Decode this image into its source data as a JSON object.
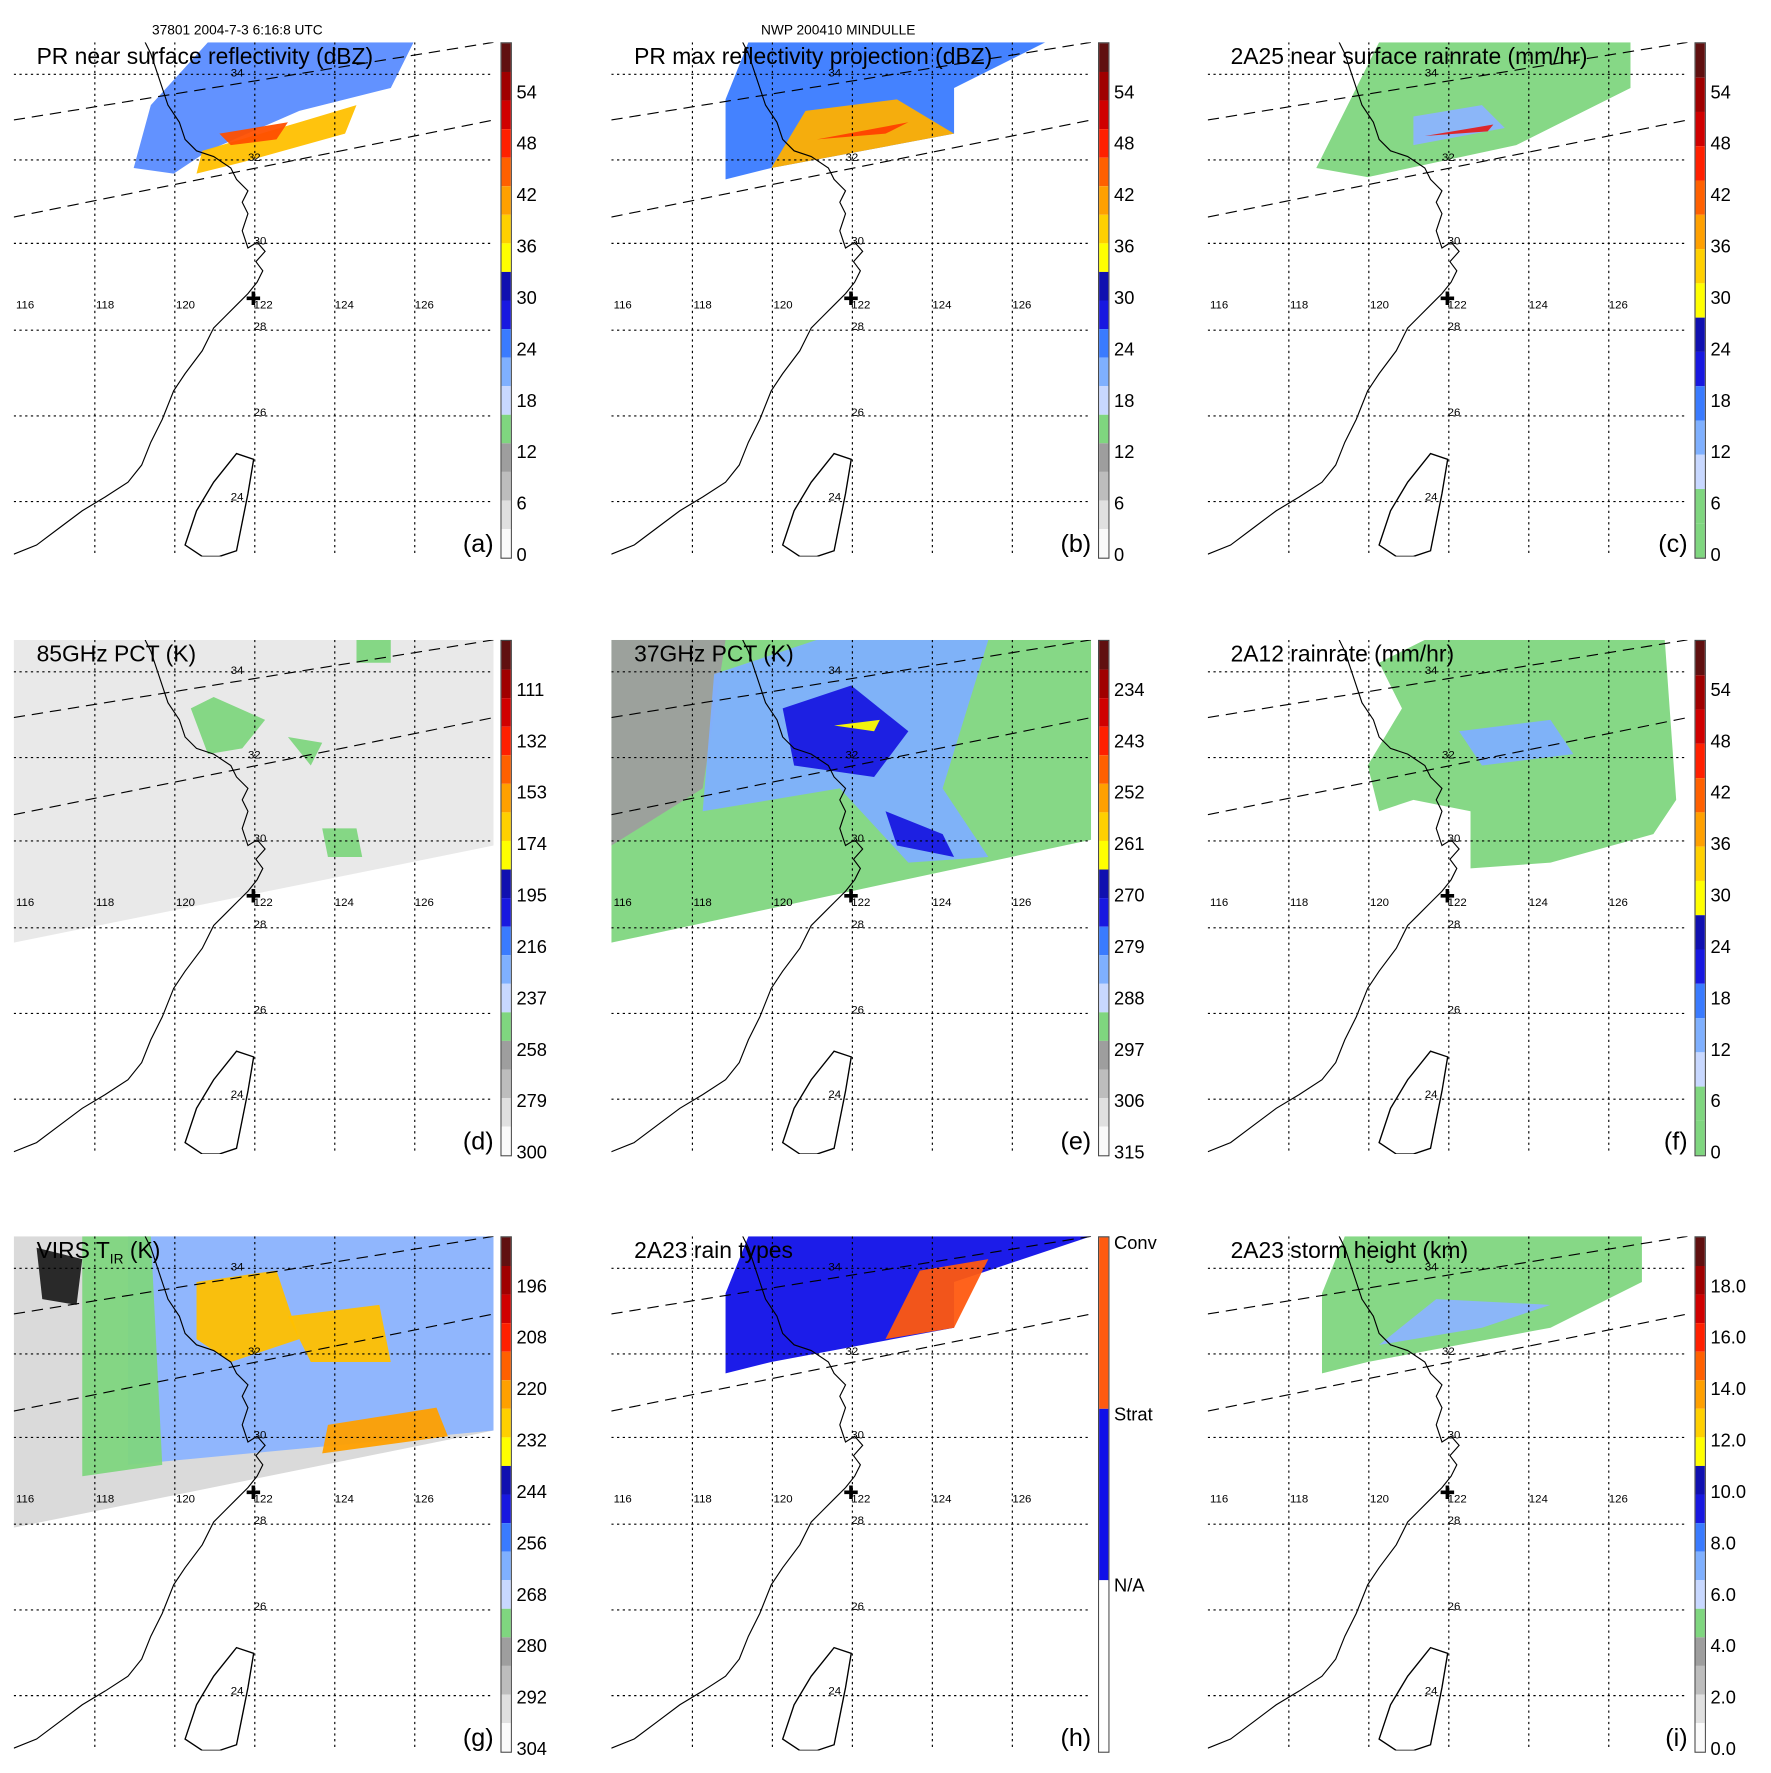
{
  "header": {
    "left": "37801 2004-7-3 6:16:8 UTC",
    "center": "NWP 200410 MINDULLE"
  },
  "lon_labels": [
    "116",
    "118",
    "120",
    "122",
    "124",
    "126"
  ],
  "lat_labels": [
    "34",
    "32",
    "30",
    "28",
    "26",
    "24"
  ],
  "chart_data": {
    "type": "heatmap",
    "panels": [
      {
        "id": "a",
        "title": "PR near surface reflectivity (dBZ)",
        "label": "(a)",
        "unit": "dBZ",
        "ticks": [
          "0",
          "6",
          "12",
          "18",
          "24",
          "30",
          "36",
          "42",
          "48",
          "54"
        ],
        "range": [
          0,
          60
        ],
        "colors": [
          "#fafafa",
          "#e0e0e0",
          "#bdbdbd",
          "#9e9e9e",
          "#7fd67f",
          "#c8d8ff",
          "#7fb0ff",
          "#3a7bff",
          "#1818e0",
          "#1010b0",
          "#ffff00",
          "#ffd000",
          "#ffa000",
          "#ff6000",
          "#ff2000",
          "#d00000",
          "#a00000",
          "#601010"
        ]
      },
      {
        "id": "b",
        "title": "PR max reflectivity projection (dBZ)",
        "label": "(b)",
        "unit": "dBZ",
        "ticks": [
          "0",
          "6",
          "12",
          "18",
          "24",
          "30",
          "36",
          "42",
          "48",
          "54"
        ],
        "range": [
          0,
          60
        ],
        "colors": [
          "#fafafa",
          "#e0e0e0",
          "#bdbdbd",
          "#9e9e9e",
          "#7fd67f",
          "#c8d8ff",
          "#7fb0ff",
          "#3a7bff",
          "#1818e0",
          "#1010b0",
          "#ffff00",
          "#ffd000",
          "#ffa000",
          "#ff6000",
          "#ff2000",
          "#d00000",
          "#a00000",
          "#601010"
        ]
      },
      {
        "id": "c",
        "title": "2A25 near surface rainrate (mm/hr)",
        "label": "(c)",
        "unit": "mm/hr",
        "ticks": [
          "0",
          "6",
          "12",
          "18",
          "24",
          "30",
          "36",
          "42",
          "48",
          "54"
        ],
        "range": [
          0,
          60
        ],
        "colors": [
          "#7fd67f",
          "#7fd67f",
          "#c8d8ff",
          "#7fb0ff",
          "#3a7bff",
          "#1818e0",
          "#1010b0",
          "#ffff00",
          "#ffd000",
          "#ffa000",
          "#ff6000",
          "#ff2000",
          "#d00000",
          "#a00000",
          "#601010"
        ]
      },
      {
        "id": "d",
        "title": "85GHz PCT (K)",
        "label": "(d)",
        "unit": "K",
        "ticks": [
          "300",
          "279",
          "258",
          "237",
          "216",
          "195",
          "174",
          "153",
          "132",
          "111"
        ],
        "range": [
          300,
          90
        ],
        "colors": [
          "#fafafa",
          "#e0e0e0",
          "#bdbdbd",
          "#9e9e9e",
          "#7fd67f",
          "#c8d8ff",
          "#7fb0ff",
          "#3a7bff",
          "#1818e0",
          "#1010b0",
          "#ffff00",
          "#ffd000",
          "#ffa000",
          "#ff6000",
          "#ff2000",
          "#d00000",
          "#a00000",
          "#601010"
        ]
      },
      {
        "id": "e",
        "title": "37GHz PCT (K)",
        "label": "(e)",
        "unit": "K",
        "ticks": [
          "315",
          "306",
          "297",
          "288",
          "279",
          "270",
          "261",
          "252",
          "243",
          "234"
        ],
        "range": [
          315,
          225
        ],
        "colors": [
          "#fafafa",
          "#e0e0e0",
          "#bdbdbd",
          "#9e9e9e",
          "#7fd67f",
          "#c8d8ff",
          "#7fb0ff",
          "#3a7bff",
          "#1818e0",
          "#1010b0",
          "#ffff00",
          "#ffd000",
          "#ffa000",
          "#ff6000",
          "#ff2000",
          "#d00000",
          "#a00000",
          "#601010"
        ]
      },
      {
        "id": "f",
        "title": "2A12 rainrate (mm/hr)",
        "label": "(f)",
        "unit": "mm/hr",
        "ticks": [
          "0",
          "6",
          "12",
          "18",
          "24",
          "30",
          "36",
          "42",
          "48",
          "54"
        ],
        "range": [
          0,
          60
        ],
        "colors": [
          "#7fd67f",
          "#7fd67f",
          "#c8d8ff",
          "#7fb0ff",
          "#3a7bff",
          "#1818e0",
          "#1010b0",
          "#ffff00",
          "#ffd000",
          "#ffa000",
          "#ff6000",
          "#ff2000",
          "#d00000",
          "#a00000",
          "#601010"
        ]
      },
      {
        "id": "g",
        "title": "VIRS T",
        "title_sub": "IR",
        "title_suffix": " (K)",
        "label": "(g)",
        "unit": "K",
        "ticks": [
          "304",
          "292",
          "280",
          "268",
          "256",
          "244",
          "232",
          "220",
          "208",
          "196"
        ],
        "range": [
          304,
          184
        ],
        "colors": [
          "#fafafa",
          "#e0e0e0",
          "#bdbdbd",
          "#9e9e9e",
          "#7fd67f",
          "#c8d8ff",
          "#7fb0ff",
          "#3a7bff",
          "#1818e0",
          "#1010b0",
          "#ffff00",
          "#ffd000",
          "#ffa000",
          "#ff6000",
          "#ff2000",
          "#d00000",
          "#a00000",
          "#601010"
        ]
      },
      {
        "id": "h",
        "title": "2A23 rain types",
        "label": "(h)",
        "unit": "",
        "ticks": [
          "N/A",
          "Strat",
          "Conv"
        ],
        "categorical": true,
        "colors": [
          "#ffffff",
          "#1010e8",
          "#ff5a10"
        ]
      },
      {
        "id": "i",
        "title": "2A23 storm height (km)",
        "label": "(i)",
        "unit": "km",
        "ticks": [
          "0.0",
          "2.0",
          "4.0",
          "6.0",
          "8.0",
          "10.0",
          "12.0",
          "14.0",
          "16.0",
          "18.0"
        ],
        "range": [
          0,
          20
        ],
        "colors": [
          "#fafafa",
          "#e0e0e0",
          "#bdbdbd",
          "#9e9e9e",
          "#7fd67f",
          "#c8d8ff",
          "#7fb0ff",
          "#3a7bff",
          "#1818e0",
          "#1010b0",
          "#ffff00",
          "#ffd000",
          "#ffa000",
          "#ff6000",
          "#ff2000",
          "#d00000",
          "#a00000",
          "#601010"
        ]
      }
    ]
  }
}
